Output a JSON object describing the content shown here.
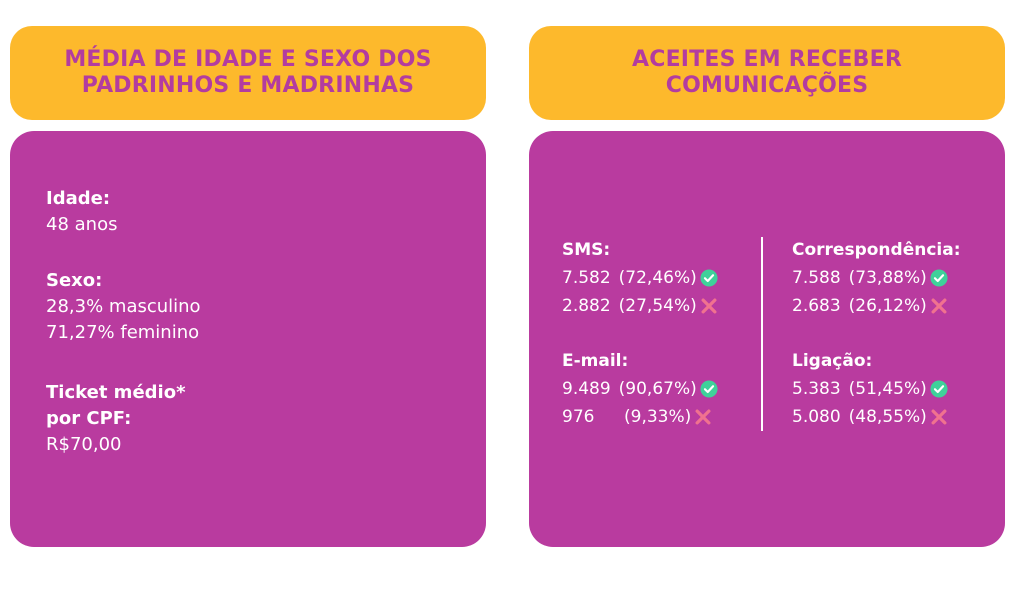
{
  "left_card": {
    "title_line1": "MÉDIA DE IDADE E SEXO DOS",
    "title_line2": "PADRINHOS E MADRINHAS",
    "idade": {
      "label": "Idade:",
      "value": "48 anos"
    },
    "sexo": {
      "label": "Sexo:",
      "masculino": "28,3% masculino",
      "feminino": "71,27% feminino"
    },
    "ticket": {
      "label_line1": "Ticket médio*",
      "label_line2": "por CPF:",
      "value": "R$70,00"
    }
  },
  "right_card": {
    "title_line1": "ACEITES EM RECEBER",
    "title_line2": "COMUNICAÇÕES",
    "sms": {
      "label": "SMS:",
      "yes": {
        "count": "7.582",
        "pct": "(72,46%)"
      },
      "no": {
        "count": "2.882",
        "pct": "(27,54%)"
      }
    },
    "email": {
      "label": "E-mail:",
      "yes": {
        "count": "9.489",
        "pct": "(90,67%)"
      },
      "no": {
        "count": "976",
        "pct": "(9,33%)"
      }
    },
    "correspondencia": {
      "label": "Correspondência:",
      "yes": {
        "count": "7.588",
        "pct": "(73,88%)"
      },
      "no": {
        "count": "2.683",
        "pct": "(26,12%)"
      }
    },
    "ligacao": {
      "label": "Ligação:",
      "yes": {
        "count": "5.383",
        "pct": "(51,45%)"
      },
      "no": {
        "count": "5.080",
        "pct": "(48,55%)"
      }
    }
  },
  "icons": {
    "yes": "check-circle-icon",
    "no": "cross-icon"
  },
  "colors": {
    "header_bg": "#fdb92c",
    "header_text": "#b33ca0",
    "panel_bg": "#b93b9f",
    "panel_text": "#ffffff",
    "check_green": "#3fd19a",
    "cross_pink": "#f0728f"
  }
}
